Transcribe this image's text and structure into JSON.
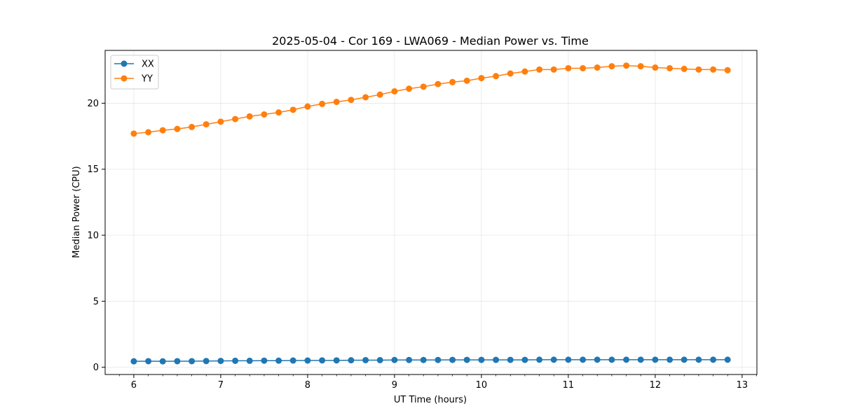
{
  "chart_data": {
    "type": "line",
    "title": "2025-05-04 - Cor 169 - LWA069 - Median Power vs. Time",
    "xlabel": "UT Time (hours)",
    "ylabel": "Median Power (CPU)",
    "xlim": [
      5.67,
      13.17
    ],
    "ylim": [
      -0.55,
      24.0
    ],
    "xticks": [
      6,
      7,
      8,
      9,
      10,
      11,
      12,
      13
    ],
    "xtick_labels": [
      "6",
      "7",
      "8",
      "9",
      "10",
      "11",
      "12",
      "13"
    ],
    "yticks": [
      0,
      5,
      10,
      15,
      20
    ],
    "ytick_labels": [
      "0",
      "5",
      "10",
      "15",
      "20"
    ],
    "grid": true,
    "legend_position": "upper-left",
    "x": [
      6.0,
      6.167,
      6.333,
      6.5,
      6.667,
      6.833,
      7.0,
      7.167,
      7.333,
      7.5,
      7.667,
      7.833,
      8.0,
      8.167,
      8.333,
      8.5,
      8.667,
      8.833,
      9.0,
      9.167,
      9.333,
      9.5,
      9.667,
      9.833,
      10.0,
      10.167,
      10.333,
      10.5,
      10.667,
      10.833,
      11.0,
      11.167,
      11.333,
      11.5,
      11.667,
      11.833,
      12.0,
      12.167,
      12.333,
      12.5,
      12.667,
      12.833
    ],
    "series": [
      {
        "name": "XX",
        "color": "#1f77b4",
        "values": [
          0.45,
          0.46,
          0.45,
          0.46,
          0.46,
          0.47,
          0.48,
          0.49,
          0.49,
          0.5,
          0.5,
          0.51,
          0.51,
          0.52,
          0.52,
          0.53,
          0.54,
          0.54,
          0.55,
          0.55,
          0.55,
          0.55,
          0.56,
          0.56,
          0.56,
          0.56,
          0.56,
          0.56,
          0.57,
          0.57,
          0.57,
          0.57,
          0.57,
          0.57,
          0.57,
          0.57,
          0.57,
          0.57,
          0.57,
          0.57,
          0.57,
          0.57
        ]
      },
      {
        "name": "YY",
        "color": "#ff7f0e",
        "values": [
          17.7,
          17.8,
          17.95,
          18.05,
          18.2,
          18.4,
          18.6,
          18.8,
          19.0,
          19.15,
          19.3,
          19.5,
          19.75,
          19.95,
          20.1,
          20.25,
          20.45,
          20.65,
          20.9,
          21.1,
          21.25,
          21.45,
          21.6,
          21.7,
          21.9,
          22.05,
          22.25,
          22.4,
          22.55,
          22.55,
          22.65,
          22.65,
          22.7,
          22.8,
          22.85,
          22.8,
          22.7,
          22.65,
          22.6,
          22.55,
          22.55,
          22.5
        ]
      }
    ]
  }
}
